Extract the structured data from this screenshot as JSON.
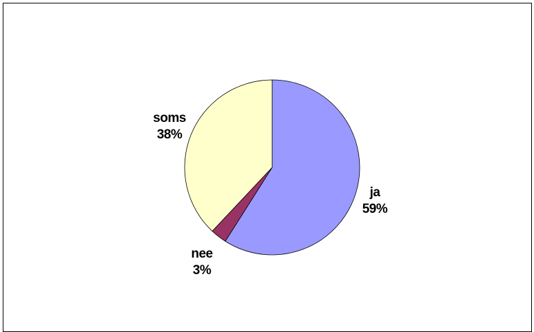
{
  "chart_data": {
    "type": "pie",
    "title": "",
    "start_angle_deg": 90,
    "direction": "clockwise",
    "slices": [
      {
        "label": "ja",
        "percent_label": "59%",
        "value": 59,
        "color": "#9999FF"
      },
      {
        "label": "nee",
        "percent_label": "3%",
        "value": 3,
        "color": "#993366"
      },
      {
        "label": "soms",
        "percent_label": "38%",
        "value": 38,
        "color": "#FFFFCC"
      }
    ],
    "legend": "none",
    "data_labels": "outside"
  }
}
